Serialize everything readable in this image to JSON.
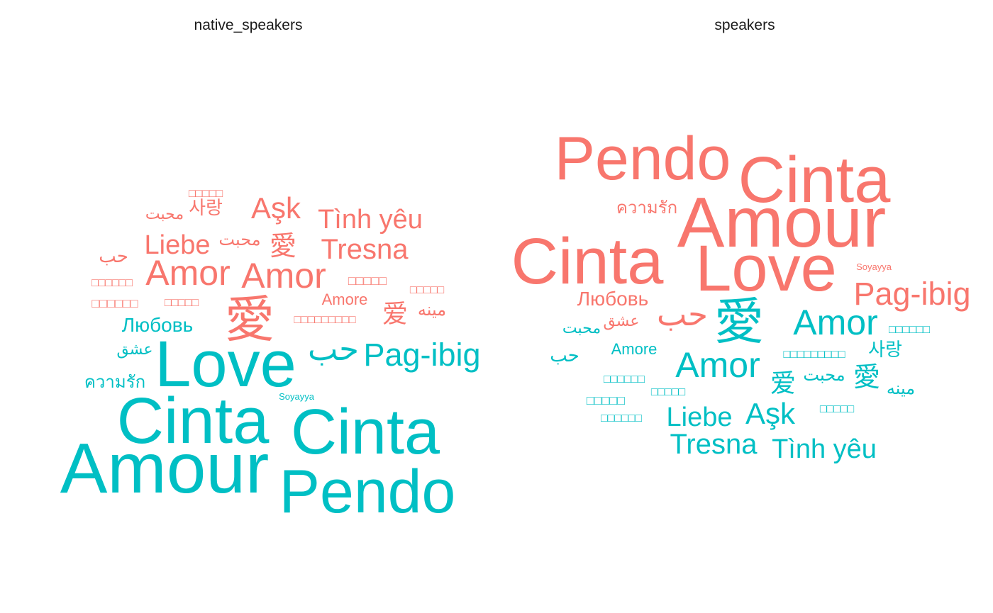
{
  "colors": {
    "group_a": "#F8766D",
    "group_b": "#00BFC4"
  },
  "chart_data": [
    {
      "type": "wordcloud",
      "title": "native_speakers",
      "words": [
        {
          "text": "Amour",
          "group": "b",
          "size": 100
        },
        {
          "text": "Cinta",
          "group": "b",
          "size": 92
        },
        {
          "text": "Cinta",
          "group": "b",
          "size": 90
        },
        {
          "text": "Pendo",
          "group": "b",
          "size": 86
        },
        {
          "text": "Love",
          "group": "b",
          "size": 92
        },
        {
          "text": "Pag-ibig",
          "group": "b",
          "size": 45
        },
        {
          "text": "حب",
          "group": "b",
          "size": 45
        },
        {
          "text": "Любовь",
          "group": "b",
          "size": 28
        },
        {
          "text": "عشق",
          "group": "b",
          "size": 22
        },
        {
          "text": "ความรัก",
          "group": "b",
          "size": 24
        },
        {
          "text": "Soyayya",
          "group": "b",
          "size": 13
        },
        {
          "text": "愛",
          "group": "a",
          "size": 70
        },
        {
          "text": "Amor",
          "group": "a",
          "size": 50
        },
        {
          "text": "Amor",
          "group": "a",
          "size": 50
        },
        {
          "text": "Aşk",
          "group": "a",
          "size": 42
        },
        {
          "text": "Tình yêu",
          "group": "a",
          "size": 38
        },
        {
          "text": "Tresna",
          "group": "a",
          "size": 40
        },
        {
          "text": "Liebe",
          "group": "a",
          "size": 38
        },
        {
          "text": "愛",
          "group": "a",
          "size": 38
        },
        {
          "text": "محبت",
          "group": "a",
          "size": 24
        },
        {
          "text": "محبت",
          "group": "a",
          "size": 22
        },
        {
          "text": "사랑",
          "group": "a",
          "size": 26
        },
        {
          "text": "حب",
          "group": "a",
          "size": 26
        },
        {
          "text": "Amore",
          "group": "a",
          "size": 22
        },
        {
          "text": "爱",
          "group": "a",
          "size": 36
        },
        {
          "text": "مينه",
          "group": "a",
          "size": 24
        },
        {
          "text": "□□□□□□",
          "group": "a",
          "size": 16
        },
        {
          "text": "□□□□□",
          "group": "a",
          "size": 16
        },
        {
          "text": "□□□□□",
          "group": "a",
          "size": 16
        },
        {
          "text": "□□□□□",
          "group": "a",
          "size": 16
        },
        {
          "text": "□□□□□□",
          "group": "a",
          "size": 18
        },
        {
          "text": "□□□□□",
          "group": "a",
          "size": 18
        },
        {
          "text": "□□□□□□□□□",
          "group": "a",
          "size": 16
        }
      ]
    },
    {
      "type": "wordcloud",
      "title": "speakers",
      "words": [
        {
          "text": "Pendo",
          "group": "a",
          "size": 86
        },
        {
          "text": "Cinta",
          "group": "a",
          "size": 92
        },
        {
          "text": "Amour",
          "group": "a",
          "size": 100
        },
        {
          "text": "Cinta",
          "group": "a",
          "size": 92
        },
        {
          "text": "Love",
          "group": "a",
          "size": 92
        },
        {
          "text": "Pag-ibig",
          "group": "a",
          "size": 45
        },
        {
          "text": "ความรัก",
          "group": "a",
          "size": 24
        },
        {
          "text": "Любовь",
          "group": "a",
          "size": 28
        },
        {
          "text": "حب",
          "group": "a",
          "size": 45
        },
        {
          "text": "عشق",
          "group": "a",
          "size": 22
        },
        {
          "text": "Soyayya",
          "group": "a",
          "size": 13
        },
        {
          "text": "愛",
          "group": "b",
          "size": 70
        },
        {
          "text": "Amor",
          "group": "b",
          "size": 50
        },
        {
          "text": "Amor",
          "group": "b",
          "size": 50
        },
        {
          "text": "Aşk",
          "group": "b",
          "size": 42
        },
        {
          "text": "Tình yêu",
          "group": "b",
          "size": 38
        },
        {
          "text": "Tresna",
          "group": "b",
          "size": 40
        },
        {
          "text": "Liebe",
          "group": "b",
          "size": 38
        },
        {
          "text": "Amore",
          "group": "b",
          "size": 22
        },
        {
          "text": "محبت",
          "group": "b",
          "size": 22
        },
        {
          "text": "محبت",
          "group": "b",
          "size": 24
        },
        {
          "text": "حب",
          "group": "b",
          "size": 26
        },
        {
          "text": "사랑",
          "group": "b",
          "size": 26
        },
        {
          "text": "愛",
          "group": "b",
          "size": 38
        },
        {
          "text": "爱",
          "group": "b",
          "size": 36
        },
        {
          "text": "مينه",
          "group": "b",
          "size": 24
        },
        {
          "text": "□□□□□□",
          "group": "b",
          "size": 16
        },
        {
          "text": "□□□□□□□□□",
          "group": "b",
          "size": 16
        },
        {
          "text": "□□□□□□",
          "group": "b",
          "size": 16
        },
        {
          "text": "□□□□□",
          "group": "b",
          "size": 16
        },
        {
          "text": "□□□□□",
          "group": "b",
          "size": 18
        },
        {
          "text": "□□□□□",
          "group": "b",
          "size": 16
        },
        {
          "text": "□□□□□□",
          "group": "b",
          "size": 16
        }
      ]
    }
  ]
}
